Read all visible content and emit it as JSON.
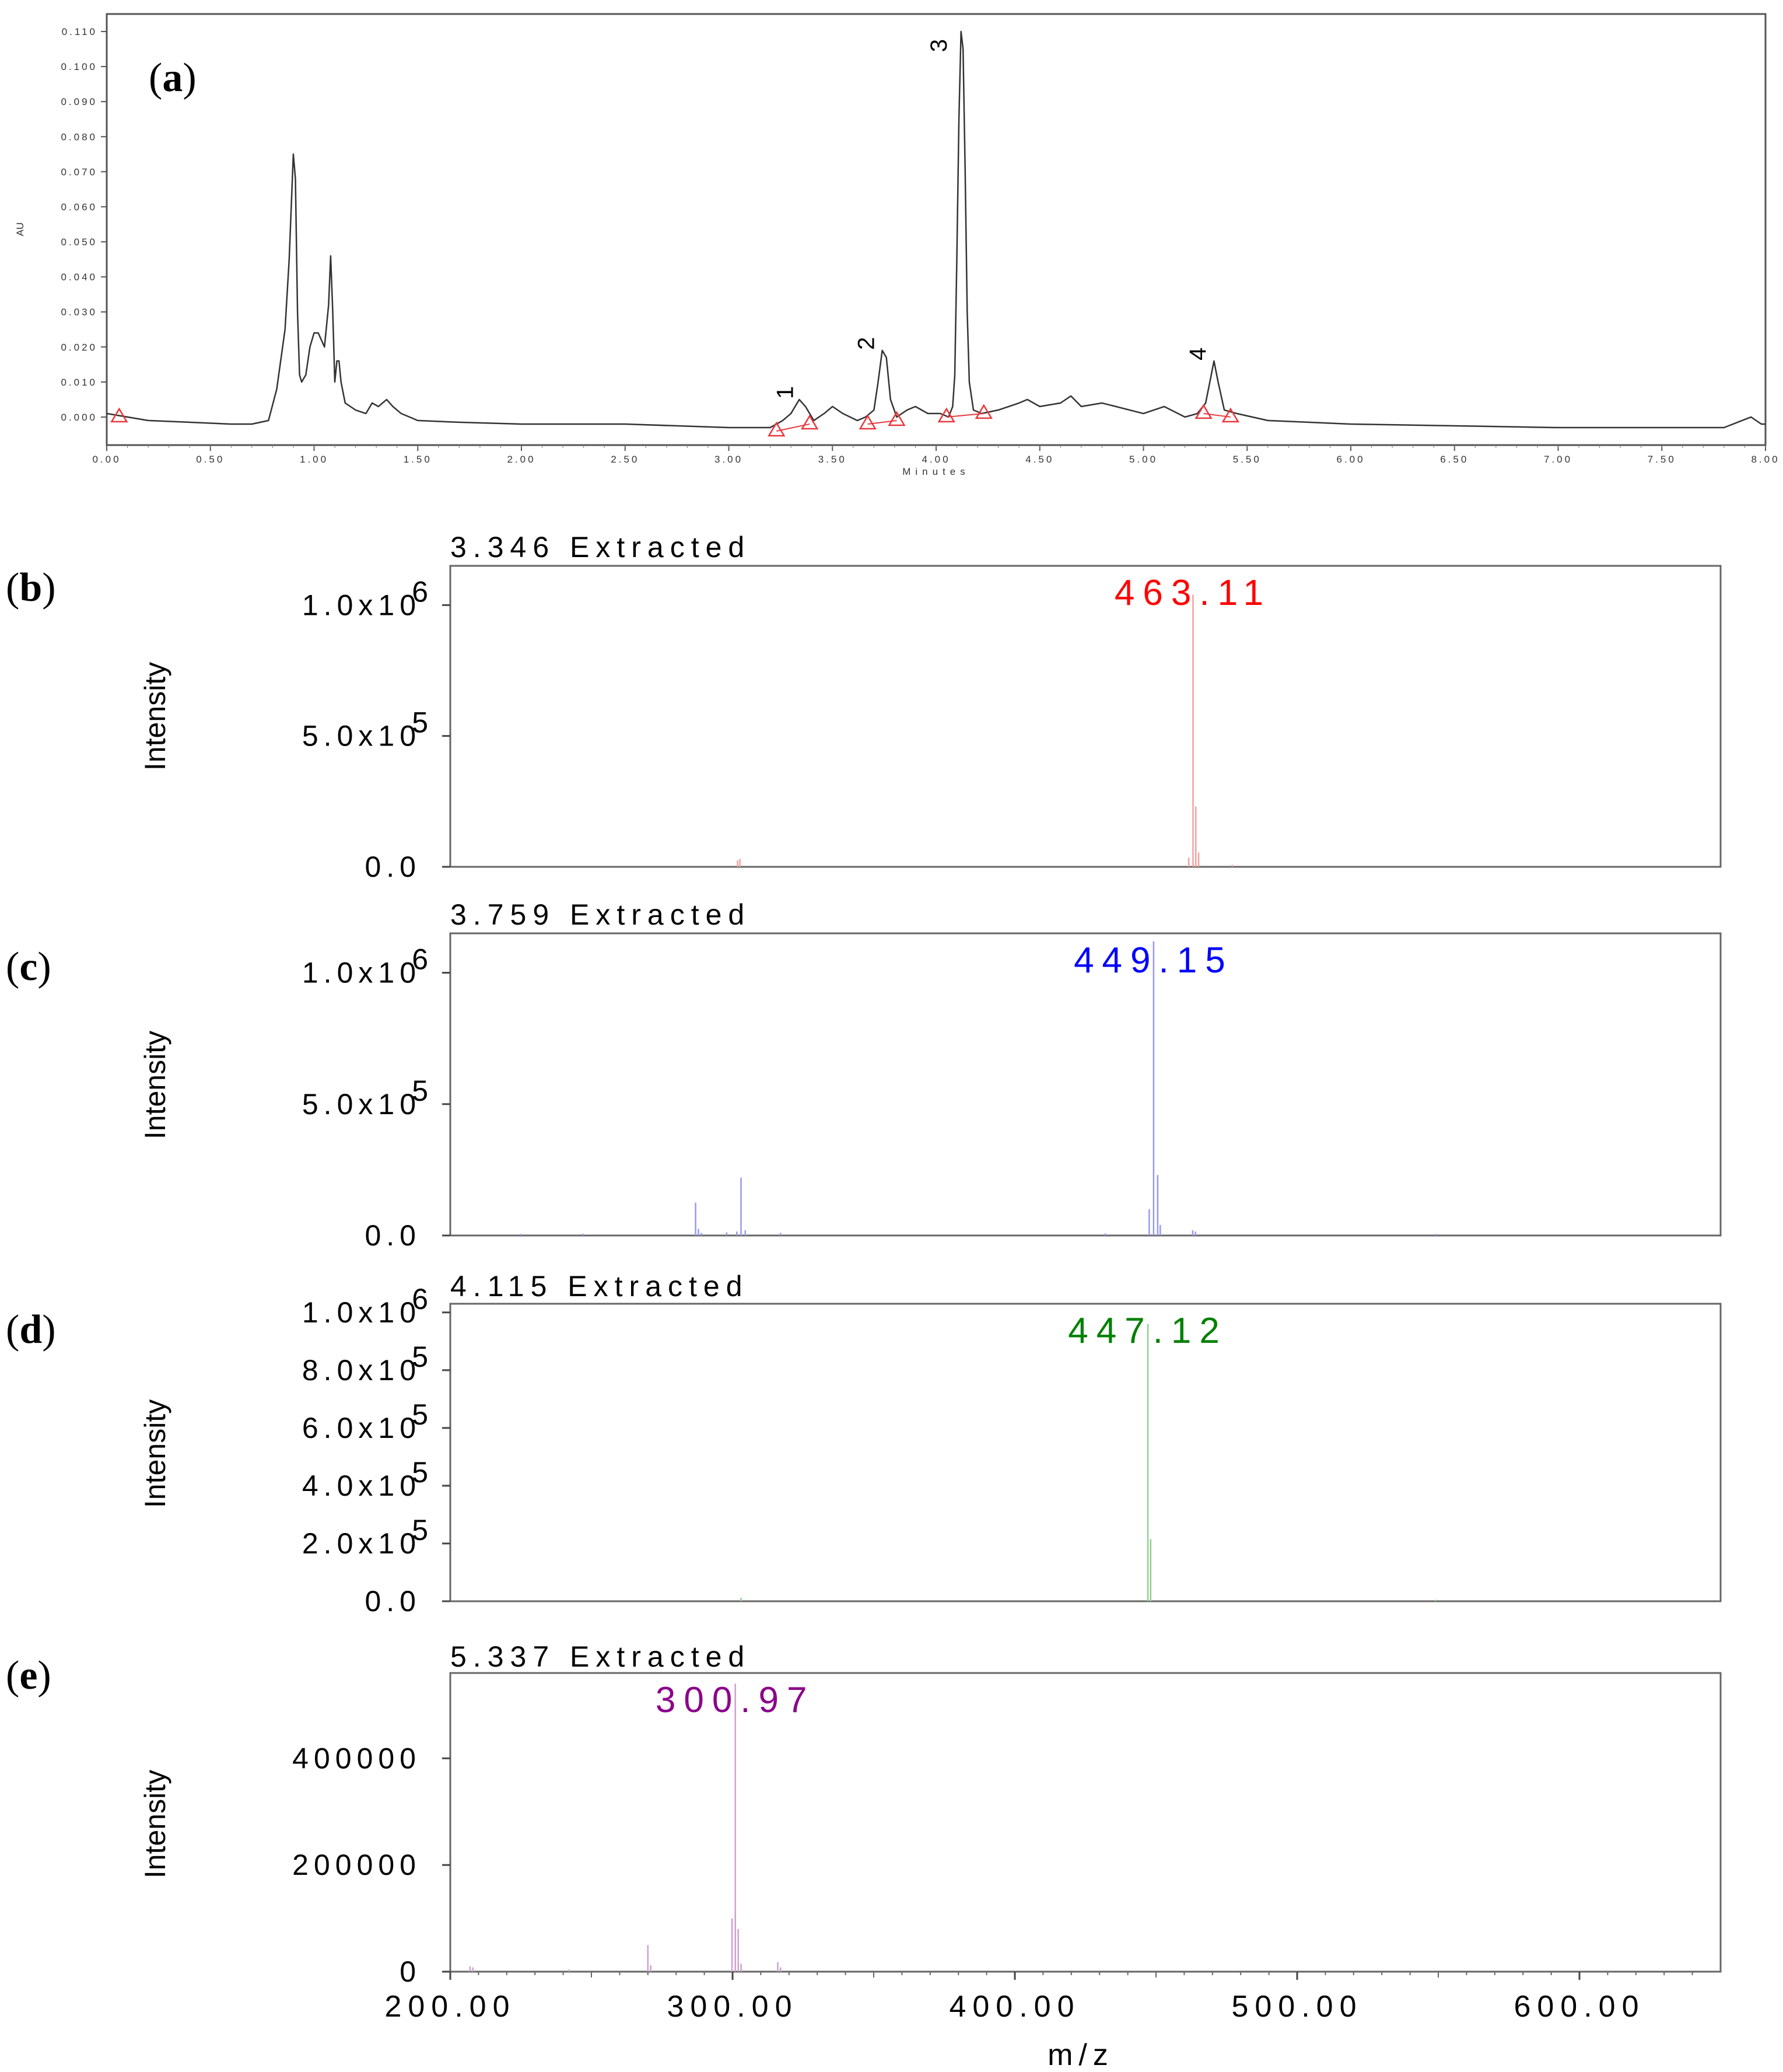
{
  "figure": {
    "panel_labels": [
      "(a)",
      "(b)",
      "(c)",
      "(d)",
      "(e)"
    ]
  },
  "chart_data": [
    {
      "id": "a",
      "type": "line",
      "title": "",
      "xlabel": "Minutes",
      "ylabel": "AU",
      "xlim": [
        0,
        8
      ],
      "ylim": [
        -0.008,
        0.115
      ],
      "x_ticks": [
        "0.00",
        "0.50",
        "1.00",
        "1.50",
        "2.00",
        "2.50",
        "3.00",
        "3.50",
        "4.00",
        "4.50",
        "5.00",
        "5.50",
        "6.00",
        "6.50",
        "7.00",
        "7.50",
        "8.00"
      ],
      "x_tick_values": [
        0,
        0.5,
        1,
        1.5,
        2,
        2.5,
        3,
        3.5,
        4,
        4.5,
        5,
        5.5,
        6,
        6.5,
        7,
        7.5,
        8
      ],
      "y_ticks": [
        "0.000",
        "0.010",
        "0.020",
        "0.030",
        "0.040",
        "0.050",
        "0.060",
        "0.070",
        "0.080",
        "0.090",
        "0.100",
        "0.110"
      ],
      "y_tick_values": [
        0,
        0.01,
        0.02,
        0.03,
        0.04,
        0.05,
        0.06,
        0.07,
        0.08,
        0.09,
        0.1,
        0.11
      ],
      "line_color": "#333333",
      "marker_color": "#e8383d",
      "trace": {
        "x": [
          0.0,
          0.1,
          0.2,
          0.4,
          0.6,
          0.7,
          0.78,
          0.82,
          0.86,
          0.88,
          0.9,
          0.91,
          0.92,
          0.93,
          0.94,
          0.96,
          0.98,
          1.0,
          1.02,
          1.05,
          1.07,
          1.08,
          1.09,
          1.1,
          1.11,
          1.12,
          1.13,
          1.15,
          1.2,
          1.25,
          1.28,
          1.31,
          1.35,
          1.38,
          1.42,
          1.5,
          1.7,
          2.0,
          2.5,
          3.0,
          3.2,
          3.26,
          3.3,
          3.34,
          3.37,
          3.41,
          3.46,
          3.5,
          3.55,
          3.62,
          3.66,
          3.7,
          3.72,
          3.74,
          3.76,
          3.78,
          3.81,
          3.86,
          3.9,
          3.96,
          4.02,
          4.06,
          4.08,
          4.09,
          4.1,
          4.11,
          4.12,
          4.13,
          4.14,
          4.15,
          4.16,
          4.18,
          4.22,
          4.3,
          4.4,
          4.44,
          4.5,
          4.6,
          4.65,
          4.7,
          4.8,
          5.0,
          5.1,
          5.2,
          5.26,
          5.3,
          5.32,
          5.34,
          5.36,
          5.39,
          5.45,
          5.6,
          6.0,
          6.5,
          7.0,
          7.5,
          7.8,
          7.93,
          7.98,
          8.0
        ],
        "y": [
          0.001,
          0.0,
          -0.001,
          -0.0015,
          -0.002,
          -0.002,
          -0.001,
          0.008,
          0.025,
          0.045,
          0.075,
          0.068,
          0.03,
          0.012,
          0.01,
          0.012,
          0.02,
          0.024,
          0.024,
          0.02,
          0.032,
          0.046,
          0.03,
          0.01,
          0.016,
          0.016,
          0.01,
          0.004,
          0.002,
          0.001,
          0.004,
          0.003,
          0.005,
          0.003,
          0.001,
          -0.001,
          -0.0015,
          -0.002,
          -0.002,
          -0.003,
          -0.003,
          -0.001,
          0.001,
          0.005,
          0.003,
          -0.001,
          0.001,
          0.003,
          0.001,
          -0.001,
          0.0,
          0.002,
          0.01,
          0.019,
          0.017,
          0.005,
          0.0,
          0.002,
          0.003,
          0.001,
          0.001,
          0.0,
          0.003,
          0.012,
          0.045,
          0.085,
          0.11,
          0.105,
          0.07,
          0.03,
          0.01,
          0.002,
          0.001,
          0.002,
          0.004,
          0.005,
          0.003,
          0.004,
          0.006,
          0.003,
          0.004,
          0.001,
          0.003,
          0.0,
          0.001,
          0.004,
          0.01,
          0.016,
          0.01,
          0.002,
          0.001,
          -0.001,
          -0.002,
          -0.0025,
          -0.003,
          -0.003,
          -0.003,
          0.0,
          -0.002,
          -0.002
        ]
      },
      "peak_labels": [
        {
          "label": "1",
          "x": 3.31,
          "y": 0.007
        },
        {
          "label": "2",
          "x": 3.7,
          "y": 0.021
        },
        {
          "label": "3",
          "x": 4.05,
          "y": 0.106
        },
        {
          "label": "4",
          "x": 5.3,
          "y": 0.018
        }
      ],
      "baseline_markers": [
        {
          "x": 0.06,
          "y": 0.0
        },
        {
          "x": 3.23,
          "y": -0.004
        },
        {
          "x": 3.39,
          "y": -0.002
        },
        {
          "x": 3.67,
          "y": -0.002
        },
        {
          "x": 3.81,
          "y": -0.001
        },
        {
          "x": 4.05,
          "y": 0.0
        },
        {
          "x": 4.23,
          "y": 0.001
        },
        {
          "x": 5.29,
          "y": 0.001
        },
        {
          "x": 5.42,
          "y": 0.0
        }
      ],
      "integration_lines": [
        {
          "x1": 3.23,
          "y1": -0.004,
          "x2": 3.39,
          "y2": -0.002
        },
        {
          "x1": 3.67,
          "y1": -0.002,
          "x2": 3.81,
          "y2": -0.001
        },
        {
          "x1": 4.05,
          "y1": 0.0,
          "x2": 4.23,
          "y2": 0.001
        },
        {
          "x1": 5.29,
          "y1": 0.001,
          "x2": 5.42,
          "y2": 0.0
        }
      ]
    },
    {
      "id": "b",
      "type": "bar",
      "title": "3.346 Extracted",
      "xlabel": "",
      "ylabel": "Intensity",
      "xlim": [
        200,
        650
      ],
      "ylim": [
        0,
        1150000
      ],
      "color": "#ff0000",
      "bar_color": "#f4a0a0",
      "y_ticks": [
        {
          "mantissa": "0.0",
          "exp": "",
          "value": 0
        },
        {
          "mantissa": "5.0x10",
          "exp": "5",
          "value": 500000
        },
        {
          "mantissa": "1.0x10",
          "exp": "6",
          "value": 1000000
        }
      ],
      "peak_label": {
        "text": "463.11",
        "mz": 463.11
      },
      "peaks": [
        {
          "mz": 301.8,
          "i": 25000
        },
        {
          "mz": 302.6,
          "i": 30000
        },
        {
          "mz": 461.6,
          "i": 35000
        },
        {
          "mz": 463.11,
          "i": 1040000
        },
        {
          "mz": 464.1,
          "i": 230000
        },
        {
          "mz": 465.1,
          "i": 55000
        },
        {
          "mz": 477.0,
          "i": 8000
        }
      ]
    },
    {
      "id": "c",
      "type": "bar",
      "title": "3.759 Extracted",
      "xlabel": "",
      "ylabel": "Intensity",
      "xlim": [
        200,
        650
      ],
      "ylim": [
        0,
        1150000
      ],
      "color": "#0000ff",
      "bar_color": "#9898f0",
      "y_ticks": [
        {
          "mantissa": "0.0",
          "exp": "",
          "value": 0
        },
        {
          "mantissa": "5.0x10",
          "exp": "5",
          "value": 500000
        },
        {
          "mantissa": "1.0x10",
          "exp": "6",
          "value": 1000000
        }
      ],
      "peak_label": {
        "text": "449.15",
        "mz": 449.15
      },
      "peaks": [
        {
          "mz": 225.0,
          "i": 6000
        },
        {
          "mz": 247.0,
          "i": 7000
        },
        {
          "mz": 286.9,
          "i": 125000
        },
        {
          "mz": 287.9,
          "i": 25000
        },
        {
          "mz": 289.0,
          "i": 10000
        },
        {
          "mz": 297.9,
          "i": 12000
        },
        {
          "mz": 301.5,
          "i": 15000
        },
        {
          "mz": 303.0,
          "i": 220000
        },
        {
          "mz": 304.5,
          "i": 20000
        },
        {
          "mz": 317.0,
          "i": 10000
        },
        {
          "mz": 432.0,
          "i": 8000
        },
        {
          "mz": 447.6,
          "i": 100000
        },
        {
          "mz": 449.15,
          "i": 1120000
        },
        {
          "mz": 450.6,
          "i": 230000
        },
        {
          "mz": 451.5,
          "i": 40000
        },
        {
          "mz": 463.0,
          "i": 20000
        },
        {
          "mz": 464.0,
          "i": 15000
        },
        {
          "mz": 549.0,
          "i": 6000
        }
      ]
    },
    {
      "id": "d",
      "type": "bar",
      "title": "4.115 Extracted",
      "xlabel": "",
      "ylabel": "Intensity",
      "xlim": [
        200,
        650
      ],
      "ylim": [
        0,
        1030000
      ],
      "color": "#008000",
      "bar_color": "#90d090",
      "y_ticks": [
        {
          "mantissa": "0.0",
          "exp": "",
          "value": 0
        },
        {
          "mantissa": "2.0x10",
          "exp": "5",
          "value": 200000
        },
        {
          "mantissa": "4.0x10",
          "exp": "5",
          "value": 400000
        },
        {
          "mantissa": "6.0x10",
          "exp": "5",
          "value": 600000
        },
        {
          "mantissa": "8.0x10",
          "exp": "5",
          "value": 800000
        },
        {
          "mantissa": "1.0x10",
          "exp": "6",
          "value": 1000000
        }
      ],
      "peak_label": {
        "text": "447.12",
        "mz": 447.12
      },
      "peaks": [
        {
          "mz": 303.0,
          "i": 12000
        },
        {
          "mz": 447.12,
          "i": 960000
        },
        {
          "mz": 448.1,
          "i": 215000
        },
        {
          "mz": 549.0,
          "i": 5000
        }
      ]
    },
    {
      "id": "e",
      "type": "bar",
      "title": "5.337 Extracted",
      "xlabel": "m/z",
      "ylabel": "Intensity",
      "xlim": [
        200,
        650
      ],
      "ylim": [
        0,
        560000
      ],
      "color": "#8b008b",
      "bar_color": "#d0a0d0",
      "y_ticks": [
        {
          "mantissa": "0",
          "exp": "",
          "value": 0
        },
        {
          "mantissa": "200000",
          "exp": "",
          "value": 200000
        },
        {
          "mantissa": "400000",
          "exp": "",
          "value": 400000
        }
      ],
      "x_ticks": [
        "200.00",
        "300.00",
        "400.00",
        "500.00",
        "600.00"
      ],
      "x_tick_values": [
        200,
        300,
        400,
        500,
        600
      ],
      "peak_label": {
        "text": "300.97",
        "mz": 300.97
      },
      "peaks": [
        {
          "mz": 207.0,
          "i": 10000
        },
        {
          "mz": 208.0,
          "i": 8000
        },
        {
          "mz": 242.0,
          "i": 4000
        },
        {
          "mz": 270.0,
          "i": 50000
        },
        {
          "mz": 271.0,
          "i": 12000
        },
        {
          "mz": 299.8,
          "i": 100000
        },
        {
          "mz": 300.97,
          "i": 540000
        },
        {
          "mz": 302.0,
          "i": 80000
        },
        {
          "mz": 303.0,
          "i": 15000
        },
        {
          "mz": 316.0,
          "i": 18000
        },
        {
          "mz": 317.0,
          "i": 8000
        }
      ]
    }
  ]
}
